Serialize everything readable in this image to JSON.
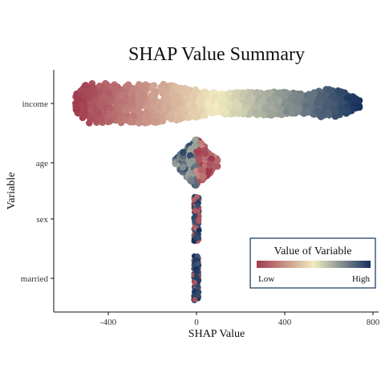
{
  "chart_data": {
    "type": "scatter",
    "subtype": "beeswarm",
    "title": "SHAP Value Summary",
    "xlabel": "SHAP Value",
    "ylabel": "Variable",
    "xlim": [
      -620,
      810
    ],
    "xticks": [
      -400,
      0,
      400,
      800
    ],
    "xtick_labels": [
      "-400",
      "0",
      "400",
      "800"
    ],
    "categories": [
      "income",
      "age",
      "sex",
      "married"
    ],
    "grid": false,
    "colors": {
      "low": "#a03a4e",
      "mid": "#f1ebc0",
      "high": "#14305c"
    },
    "legend": {
      "title": "Value of Variable",
      "low_label": "Low",
      "high_label": "High",
      "placement": "bottom-right"
    },
    "series": [
      {
        "variable": "income",
        "shap_min": -560,
        "shap_max": 750,
        "low_value_side": "negative"
      },
      {
        "variable": "age",
        "shap_min": -95,
        "shap_max": 95,
        "low_value_side": "positive"
      },
      {
        "variable": "sex",
        "shap_min": -12,
        "shap_max": 12,
        "low_value_side": "mixed"
      },
      {
        "variable": "married",
        "shap_min": -12,
        "shap_max": 10,
        "low_value_side": "mixed"
      }
    ]
  }
}
